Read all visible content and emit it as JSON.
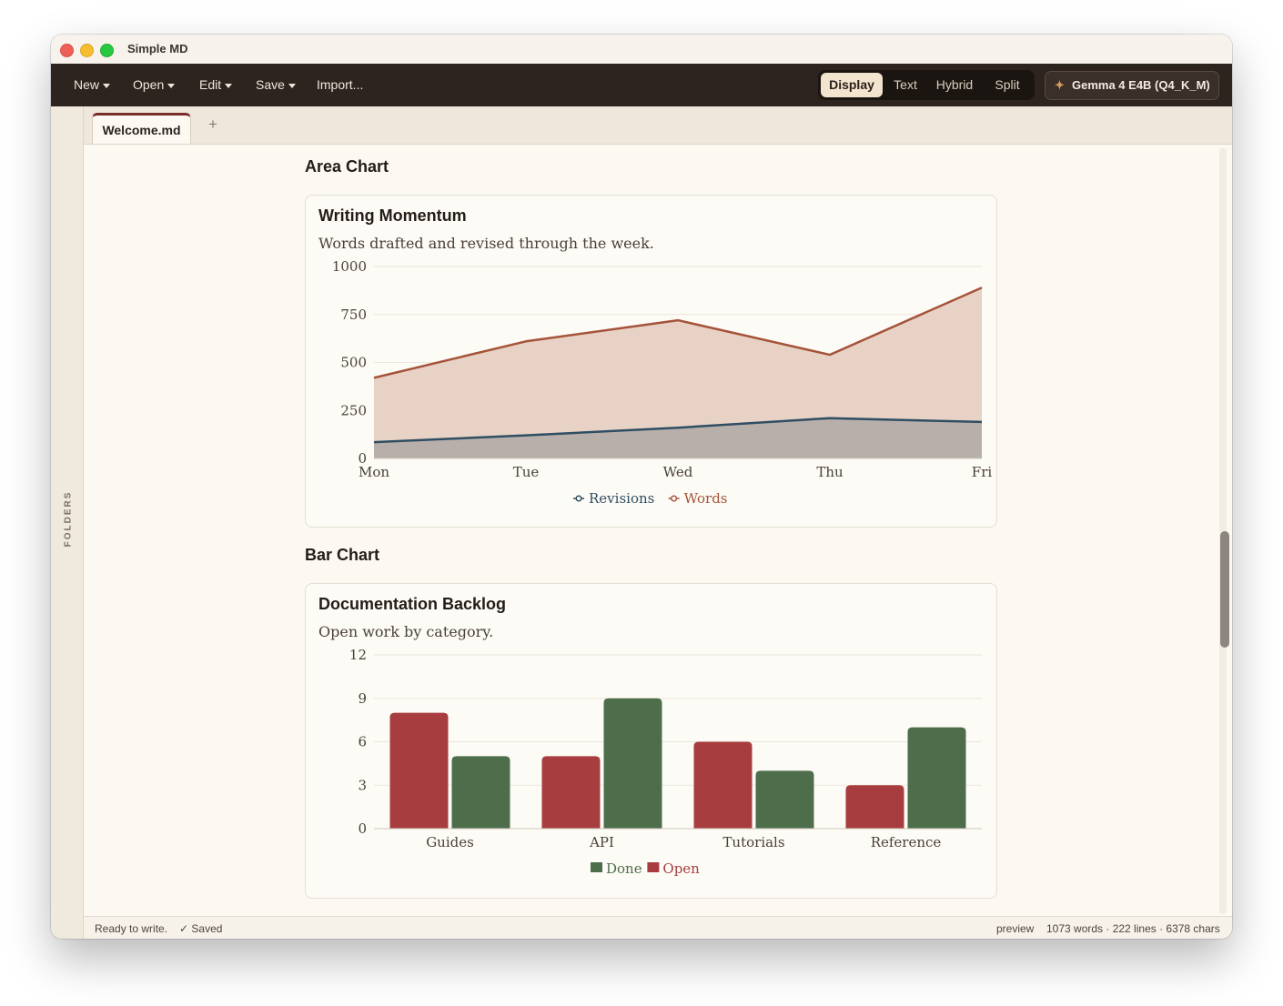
{
  "window": {
    "title": "Simple MD"
  },
  "toolbar": {
    "menus": [
      "New",
      "Open",
      "Edit",
      "Save",
      "Import..."
    ],
    "modes": [
      "Display",
      "Text",
      "Hybrid",
      "Split"
    ],
    "active_mode": "Display",
    "model_button": "Gemma 4 E4B (Q4_K_M)",
    "model_icon": "sparkle-icon"
  },
  "sidebar": {
    "label": "FOLDERS"
  },
  "tabs": {
    "items": [
      {
        "label": "Welcome.md",
        "active": true
      }
    ],
    "add_label": "+"
  },
  "document": {
    "area_heading": "Area Chart",
    "bar_heading": "Bar Chart"
  },
  "chart_data": [
    {
      "type": "area",
      "title": "Writing Momentum",
      "subtitle": "Words drafted and revised through the week.",
      "categories": [
        "Mon",
        "Tue",
        "Wed",
        "Thu",
        "Fri"
      ],
      "series": [
        {
          "name": "Revisions",
          "values": [
            85,
            120,
            160,
            210,
            190
          ],
          "color": "#2f4e63"
        },
        {
          "name": "Words",
          "values": [
            420,
            610,
            720,
            540,
            890
          ],
          "color": "#a5533a"
        }
      ],
      "yticks": [
        0,
        250,
        500,
        750,
        1000
      ],
      "ylim": [
        0,
        1000
      ],
      "legend": "bottom"
    },
    {
      "type": "bar",
      "title": "Documentation Backlog",
      "subtitle": "Open work by category.",
      "categories": [
        "Guides",
        "API",
        "Tutorials",
        "Reference"
      ],
      "series": [
        {
          "name": "Open",
          "values": [
            8,
            5,
            6,
            3
          ],
          "color": "#a83d40"
        },
        {
          "name": "Done",
          "values": [
            5,
            9,
            4,
            7
          ],
          "color": "#4e6e4b"
        }
      ],
      "legend_order": [
        "Done",
        "Open"
      ],
      "yticks": [
        0,
        3,
        6,
        9,
        12
      ],
      "ylim": [
        0,
        12
      ],
      "legend": "bottom"
    }
  ],
  "status": {
    "left": "Ready to write.",
    "saved": "✓ Saved",
    "mode": "preview",
    "stats": "1073 words · 222 lines · 6378 chars"
  }
}
